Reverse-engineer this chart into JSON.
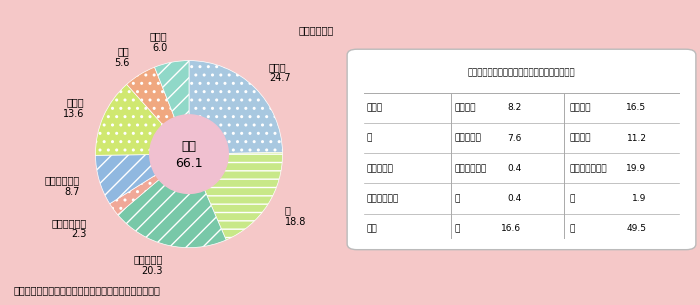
{
  "unit_label": "（単位：％）",
  "background_color": "#f5c8c8",
  "pie_center_label": "同居",
  "pie_center_value": "66.1",
  "slices": [
    {
      "label": "配偶者",
      "value": 24.7,
      "color": "#a8c8e0",
      "hatch": ".."
    },
    {
      "label": "子",
      "value": 18.8,
      "color": "#c8e888",
      "hatch": "--"
    },
    {
      "label": "子の配偶者",
      "value": 20.3,
      "color": "#78c8a8",
      "hatch": "//"
    },
    {
      "label": "その他の親族",
      "value": 2.3,
      "color": "#f0a898",
      "hatch": ".."
    },
    {
      "label": "別居の家族等",
      "value": 8.7,
      "color": "#90b8e0",
      "hatch": "//"
    },
    {
      "label": "事業者",
      "value": 13.6,
      "color": "#d0e870",
      "hatch": ".."
    },
    {
      "label": "不詳",
      "value": 5.6,
      "color": "#f0a880",
      "hatch": ".."
    },
    {
      "label": "その他",
      "value": 6.0,
      "color": "#90d8c8",
      "hatch": "//"
    }
  ],
  "center_color": "#f0c0d0",
  "source_text": "資料：厚生労働省『国民生活基礎調査』（平成１６年）",
  "table_title": "同居の家族等介護者の男女別内訳（単位：％）",
  "table_rows": [
    [
      "配偶者",
      "男（夫）",
      "8.2",
      "女（妻）",
      "16.5"
    ],
    [
      "子",
      "男（息子）",
      "7.6",
      "女（娘）",
      "11.2"
    ],
    [
      "子の配偶者",
      "男（娘の夫）",
      "0.4",
      "女（息子の妻）",
      "19.9"
    ],
    [
      "その他の親族",
      "男",
      "0.4",
      "女",
      "1.9"
    ],
    [
      "合計",
      "男",
      "16.6",
      "女",
      "49.5"
    ]
  ]
}
